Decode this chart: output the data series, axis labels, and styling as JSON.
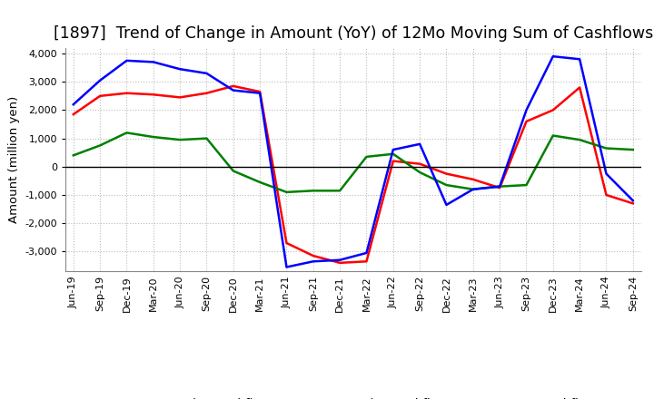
{
  "title": "[1897]  Trend of Change in Amount (YoY) of 12Mo Moving Sum of Cashflows",
  "ylabel": "Amount (million yen)",
  "x_labels": [
    "Jun-19",
    "Sep-19",
    "Dec-19",
    "Mar-20",
    "Jun-20",
    "Sep-20",
    "Dec-20",
    "Mar-21",
    "Jun-21",
    "Sep-21",
    "Dec-21",
    "Mar-22",
    "Jun-22",
    "Sep-22",
    "Dec-22",
    "Mar-23",
    "Jun-23",
    "Sep-23",
    "Dec-23",
    "Mar-24",
    "Jun-24",
    "Sep-24"
  ],
  "operating": [
    1850,
    2500,
    2600,
    2550,
    2450,
    2600,
    2850,
    2650,
    -2700,
    -3150,
    -3400,
    -3350,
    200,
    100,
    -250,
    -450,
    -750,
    1600,
    2000,
    2800,
    -1000,
    -1300
  ],
  "investing": [
    400,
    750,
    1200,
    1050,
    950,
    1000,
    -150,
    -550,
    -900,
    -850,
    -850,
    350,
    450,
    -200,
    -650,
    -800,
    -700,
    -650,
    1100,
    950,
    650,
    600
  ],
  "free": [
    2200,
    3050,
    3750,
    3700,
    3450,
    3300,
    2700,
    2600,
    -3550,
    -3350,
    -3300,
    -3050,
    600,
    800,
    -1350,
    -800,
    -700,
    2000,
    3900,
    3800,
    -250,
    -1200
  ],
  "ylim": [
    -3700,
    4200
  ],
  "yticks": [
    -3000,
    -2000,
    -1000,
    0,
    1000,
    2000,
    3000,
    4000
  ],
  "operating_color": "#ff0000",
  "investing_color": "#008000",
  "free_color": "#0000ff",
  "bg_color": "#ffffff",
  "grid_color": "#bbbbbb",
  "title_fontsize": 12.5,
  "label_fontsize": 9.5,
  "tick_fontsize": 8,
  "line_width": 1.8
}
